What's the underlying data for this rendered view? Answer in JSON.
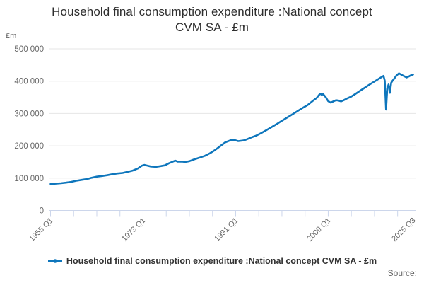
{
  "header": {
    "title_lines": [
      "Household final consumption expenditure :National concept",
      "CVM SA - £m"
    ],
    "title": "Household final consumption expenditure :National concept CVM SA - £m"
  },
  "legend": {
    "label": "Household final consumption expenditure :National concept CVM SA - £m"
  },
  "source": {
    "label": "Source:"
  },
  "colors": {
    "series_blue": "#0e76bc",
    "gridline": "#e6e6e6",
    "axis": "#ccd6eb",
    "tick_label": "#666666",
    "title_text": "#2e2e2e",
    "legend_text": "#333333"
  },
  "chart_data": {
    "type": "line",
    "title": "Household final consumption expenditure :National concept CVM SA - £m",
    "unit_label": "£m",
    "legend_position": "bottom",
    "grid": true,
    "x_axis": {
      "range": [
        1955.0,
        2025.5
      ],
      "start_label": "1955 Q1",
      "end_label": "2025 Q3",
      "minor_tick_interval_years": 4.5,
      "labeled_ticks": [
        {
          "label": "1955 Q1",
          "year": 1955.0
        },
        {
          "label": "1973 Q1",
          "year": 1973.0
        },
        {
          "label": "1991 Q1",
          "year": 1991.0
        },
        {
          "label": "2009 Q1",
          "year": 2009.0
        },
        {
          "label": "2025 Q3",
          "year": 2025.5
        }
      ]
    },
    "y_axis": {
      "range": [
        0,
        500000
      ],
      "ticks": [
        {
          "label": "0",
          "value": 0
        },
        {
          "label": "100 000",
          "value": 100000
        },
        {
          "label": "200 000",
          "value": 200000
        },
        {
          "label": "300 000",
          "value": 300000
        },
        {
          "label": "400 000",
          "value": 400000
        },
        {
          "label": "500 000",
          "value": 500000
        }
      ]
    },
    "series": [
      {
        "name": "Household final consumption expenditure :National concept CVM SA - £m",
        "color": "#0e76bc",
        "units": "£m, chained volume measure, seasonally adjusted, quarterly",
        "points": [
          [
            1955.0,
            82000
          ],
          [
            1955.5,
            82300
          ],
          [
            1956.0,
            83000
          ],
          [
            1957.0,
            84300
          ],
          [
            1958.0,
            86000
          ],
          [
            1959.0,
            88500
          ],
          [
            1960.0,
            92000
          ],
          [
            1961.0,
            94500
          ],
          [
            1962.0,
            97000
          ],
          [
            1963.0,
            101000
          ],
          [
            1964.0,
            104500
          ],
          [
            1965.0,
            106500
          ],
          [
            1966.0,
            109000
          ],
          [
            1967.0,
            112000
          ],
          [
            1968.0,
            114500
          ],
          [
            1969.0,
            116000
          ],
          [
            1970.0,
            119500
          ],
          [
            1971.0,
            123500
          ],
          [
            1972.0,
            130000
          ],
          [
            1972.75,
            138500
          ],
          [
            1973.25,
            141000
          ],
          [
            1973.75,
            139000
          ],
          [
            1974.5,
            136000
          ],
          [
            1975.5,
            135000
          ],
          [
            1976.5,
            137500
          ],
          [
            1977.25,
            139500
          ],
          [
            1978.0,
            146000
          ],
          [
            1979.25,
            154000
          ],
          [
            1979.75,
            151000
          ],
          [
            1980.5,
            151500
          ],
          [
            1981.25,
            150000
          ],
          [
            1982.0,
            152500
          ],
          [
            1983.0,
            158500
          ],
          [
            1984.0,
            163500
          ],
          [
            1985.0,
            169000
          ],
          [
            1986.0,
            177000
          ],
          [
            1987.0,
            187000
          ],
          [
            1988.0,
            199000
          ],
          [
            1989.0,
            211000
          ],
          [
            1990.0,
            217000
          ],
          [
            1990.75,
            218000
          ],
          [
            1991.5,
            214500
          ],
          [
            1992.5,
            216500
          ],
          [
            1993.0,
            219000
          ],
          [
            1994.0,
            225500
          ],
          [
            1995.0,
            231500
          ],
          [
            1996.0,
            239500
          ],
          [
            1997.0,
            248500
          ],
          [
            1998.0,
            258000
          ],
          [
            1999.0,
            267500
          ],
          [
            2000.0,
            277500
          ],
          [
            2001.0,
            287000
          ],
          [
            2002.0,
            297000
          ],
          [
            2003.0,
            307000
          ],
          [
            2004.0,
            317000
          ],
          [
            2005.0,
            326000
          ],
          [
            2006.0,
            339000
          ],
          [
            2006.75,
            348000
          ],
          [
            2007.25,
            358000
          ],
          [
            2007.5,
            361000
          ],
          [
            2007.75,
            357500
          ],
          [
            2008.0,
            360000
          ],
          [
            2008.5,
            351000
          ],
          [
            2009.0,
            338000
          ],
          [
            2009.5,
            333500
          ],
          [
            2010.0,
            337500
          ],
          [
            2010.5,
            341000
          ],
          [
            2011.0,
            340000
          ],
          [
            2011.5,
            337500
          ],
          [
            2012.0,
            341000
          ],
          [
            2012.75,
            347000
          ],
          [
            2013.5,
            352500
          ],
          [
            2014.25,
            360000
          ],
          [
            2015.0,
            368000
          ],
          [
            2016.0,
            378500
          ],
          [
            2017.0,
            389000
          ],
          [
            2018.0,
            399000
          ],
          [
            2019.0,
            409000
          ],
          [
            2019.75,
            416500
          ],
          [
            2020.0,
            401000
          ],
          [
            2020.25,
            312000
          ],
          [
            2020.5,
            378000
          ],
          [
            2020.75,
            390000
          ],
          [
            2021.0,
            364000
          ],
          [
            2021.25,
            395000
          ],
          [
            2021.5,
            401000
          ],
          [
            2021.75,
            406000
          ],
          [
            2022.25,
            417000
          ],
          [
            2022.75,
            424000
          ],
          [
            2023.25,
            420000
          ],
          [
            2023.75,
            415500
          ],
          [
            2024.25,
            411500
          ],
          [
            2024.75,
            415000
          ],
          [
            2025.0,
            417500
          ],
          [
            2025.5,
            420500
          ]
        ]
      }
    ]
  }
}
